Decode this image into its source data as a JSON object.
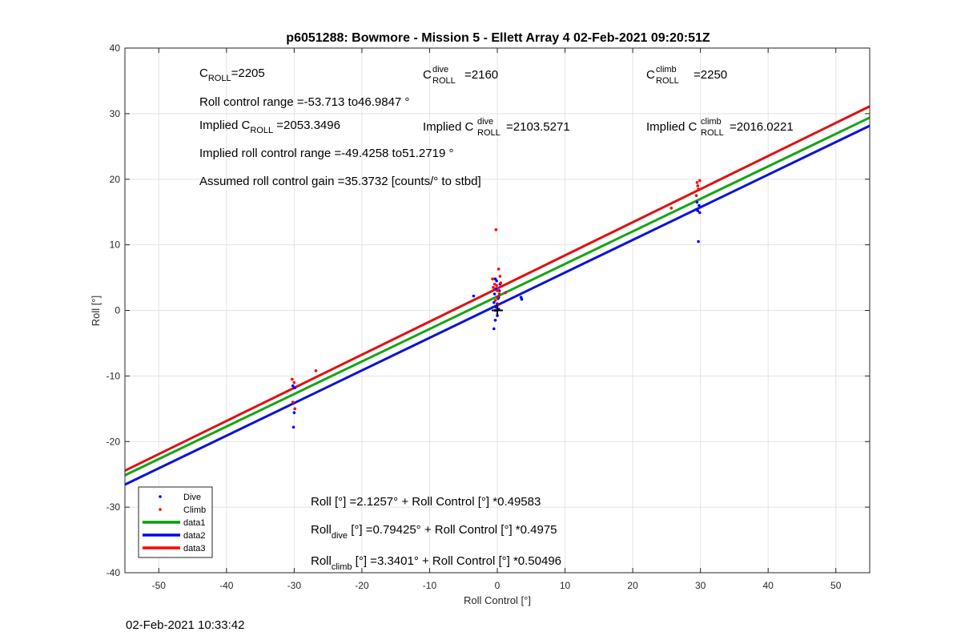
{
  "chart_data": {
    "type": "scatter",
    "title": "p6051288: Bowmore - Mission 5 - Ellett Array 4 02-Feb-2021 09:20:51Z",
    "xlabel": "Roll Control [°]",
    "ylabel": "Roll [°]",
    "xlim": [
      -55,
      55
    ],
    "ylim": [
      -40,
      40
    ],
    "xticks": [
      -50,
      -40,
      -30,
      -20,
      -10,
      0,
      10,
      20,
      30,
      40,
      50
    ],
    "yticks": [
      -40,
      -30,
      -20,
      -10,
      0,
      10,
      20,
      30,
      40
    ],
    "grid": true,
    "legend_position": "bottom-left",
    "legend": [
      {
        "label": "Dive",
        "kind": "dots",
        "color": "#0000ff"
      },
      {
        "label": "Climb",
        "kind": "dots",
        "color": "#ff0000"
      },
      {
        "label": "data1",
        "kind": "line",
        "color": "#00a000"
      },
      {
        "label": "data2",
        "kind": "line",
        "color": "#0000ff"
      },
      {
        "label": "data3",
        "kind": "line",
        "color": "#ff0000"
      }
    ],
    "fit_lines": [
      {
        "name": "data1",
        "color": "#14a514",
        "intercept": 2.1257,
        "slope": 0.49583
      },
      {
        "name": "data2",
        "color": "#0a14d6",
        "intercept": 0.79425,
        "slope": 0.4975
      },
      {
        "name": "data3",
        "color": "#e01010",
        "intercept": 3.3401,
        "slope": 0.50496
      }
    ],
    "series": [
      {
        "name": "Dive",
        "color": "#0000ff",
        "x": [
          -30.2,
          -30.0,
          -30.1,
          -29.9,
          -3.5,
          -0.5,
          -0.3,
          -0.2,
          0.0,
          0.2,
          -0.4,
          0.1,
          -0.3,
          0.3,
          -0.1,
          0.4,
          -0.2,
          0.0,
          -0.5,
          0.2,
          3.5,
          3.6,
          29.7,
          29.6,
          29.8,
          29.5,
          29.9,
          -0.3
        ],
        "y": [
          -11.5,
          -15.6,
          -17.8,
          -11.8,
          2.2,
          -2.8,
          -1.5,
          0.5,
          1.0,
          0.2,
          2.5,
          1.8,
          0.0,
          3.0,
          4.5,
          4.0,
          3.3,
          -0.8,
          1.2,
          2.0,
          2.0,
          1.7,
          10.5,
          15.2,
          16.0,
          16.5,
          14.9,
          4.8
        ],
        "marker": "dot"
      },
      {
        "name": "Climb",
        "color": "#ff0000",
        "x": [
          -30.3,
          -30.0,
          -29.9,
          -30.2,
          -26.8,
          -0.2,
          -0.4,
          0.2,
          -0.6,
          0.3,
          -0.1,
          0.5,
          0.0,
          -0.3,
          0.1,
          0.4,
          1.2,
          -0.7,
          0.0,
          25.7,
          29.5,
          29.7,
          29.9,
          29.4,
          29.6
        ],
        "y": [
          -10.5,
          -11.0,
          -15.0,
          -14.0,
          -9.2,
          12.3,
          4.0,
          6.3,
          3.5,
          2.5,
          3.8,
          4.2,
          2.0,
          1.5,
          0.8,
          5.2,
          2.7,
          4.8,
          3.0,
          15.6,
          19.5,
          18.5,
          19.8,
          17.5,
          19.0
        ],
        "marker": "dot"
      }
    ],
    "crosshair": {
      "x": 0,
      "y": 0
    },
    "annotations": {
      "c_roll": "=2205",
      "c_dive_roll": "=2160",
      "c_climb_roll": "=2250",
      "roll_control_range": "Roll control range =-53.713 to46.9847 °",
      "implied_prefix": "Implied C",
      "implied_c_roll": " =2053.3496",
      "implied_c_dive": " =2103.5271",
      "implied_c_climb": " =2016.0221",
      "implied_range": "Implied roll control range =-49.4258 to51.2719 °",
      "gain": "Assumed roll control gain =35.3732 [counts/° to stbd]",
      "fit_all": "Roll [°] =2.1257° + Roll Control [°] *0.49583",
      "fit_dive_suffix": " [°] =0.79425° + Roll Control [°] *0.4975",
      "fit_climb_suffix": " [°] =3.3401° + Roll Control [°] *0.50496",
      "sym_C": "C",
      "sub_roll": "ROLL",
      "sup_dive": "dive",
      "sup_climb": "climb",
      "word_roll": "Roll",
      "sub_dive": "dive",
      "sub_climb": "climb"
    }
  },
  "footer": {
    "timestamp": "02-Feb-2021 10:33:42"
  }
}
